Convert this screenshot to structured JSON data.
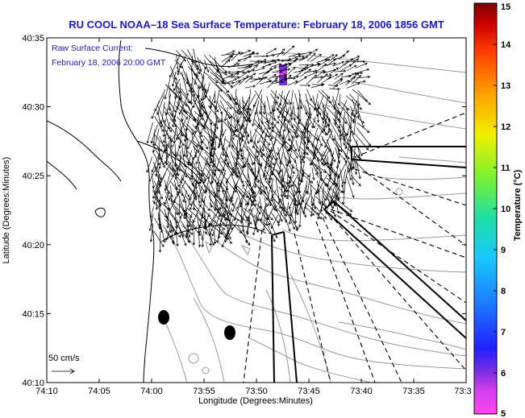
{
  "chart_data": {
    "type": "vector-field-map",
    "title": "RU COOL  NOAA–18  Sea Surface Temperature:  February 18, 2006 1856 GMT",
    "annotation_line1": "Raw Surface Current:",
    "annotation_line2": "February 18, 2006 20:00 GMT",
    "xlabel": "Longitude (Degrees:Minutes)",
    "ylabel": "Latitude (Degrees:Minutes)",
    "x_ticks": [
      "74:10",
      "74:05",
      "74:00",
      "73:55",
      "73:50",
      "73:45",
      "73:40",
      "73:35",
      "73:3"
    ],
    "y_ticks": [
      "40:10",
      "40:15",
      "40:20",
      "40:25",
      "40:30",
      "40:35"
    ],
    "xlim_minutes_west": [
      250,
      210
    ],
    "ylim_minutes_north": [
      2410,
      2435
    ],
    "scale_label": "50 cm/s",
    "colorbar": {
      "label": "Temperature (°C)",
      "ticks": [
        "5",
        "6",
        "7",
        "8",
        "9",
        "10",
        "11",
        "12",
        "13",
        "14",
        "15"
      ],
      "range": [
        5,
        15
      ],
      "colors": [
        "#ff44ee",
        "#7f2fe0",
        "#2020ff",
        "#1e7bff",
        "#18c8ff",
        "#20e0a0",
        "#80f030",
        "#f0f000",
        "#ffa000",
        "#ff4000",
        "#cc0000",
        "#7a0000"
      ]
    },
    "grid": false,
    "legend": "none"
  }
}
